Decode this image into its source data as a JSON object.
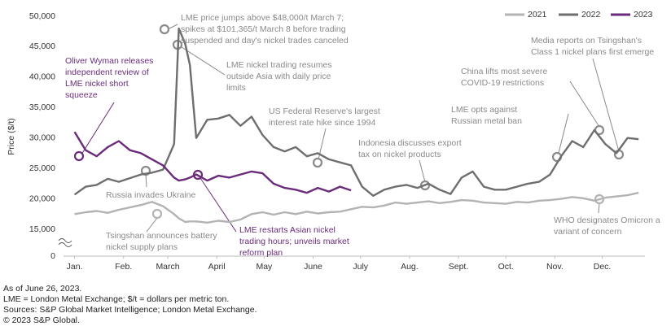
{
  "chart_data": {
    "type": "line",
    "y_label": "Price ($/t)",
    "ylim": [
      15000,
      50000
    ],
    "yticks": [
      {
        "value": 15000,
        "label": "15,000"
      },
      {
        "value": 20000,
        "label": "20,000"
      },
      {
        "value": 25000,
        "label": "25,000"
      },
      {
        "value": 30000,
        "label": "30,000"
      },
      {
        "value": 35000,
        "label": "35,000"
      },
      {
        "value": 40000,
        "label": "40,000"
      },
      {
        "value": 45000,
        "label": "45,000"
      },
      {
        "value": 50000,
        "label": "50,000"
      }
    ],
    "y_break_label": "0",
    "xlim": [
      -7,
      360
    ],
    "xticks": [
      {
        "value": 0,
        "label": "Jan."
      },
      {
        "value": 31,
        "label": "Feb."
      },
      {
        "value": 59,
        "label": "March"
      },
      {
        "value": 90,
        "label": "April"
      },
      {
        "value": 120,
        "label": "May"
      },
      {
        "value": 151,
        "label": "June"
      },
      {
        "value": 181,
        "label": "July"
      },
      {
        "value": 212,
        "label": "Aug."
      },
      {
        "value": 243,
        "label": "Sept."
      },
      {
        "value": 273,
        "label": "Oct."
      },
      {
        "value": 304,
        "label": "Nov."
      },
      {
        "value": 334,
        "label": "Dec."
      }
    ],
    "grid": false,
    "legend": "top-right",
    "x": [
      0,
      7,
      14,
      21,
      28,
      35,
      42,
      49,
      56,
      63,
      66,
      70,
      73,
      77,
      84,
      91,
      98,
      105,
      112,
      119,
      126,
      133,
      140,
      147,
      154,
      161,
      168,
      175,
      182,
      189,
      196,
      203,
      210,
      217,
      224,
      231,
      238,
      245,
      252,
      259,
      266,
      273,
      280,
      287,
      294,
      301,
      308,
      315,
      322,
      329,
      336,
      343,
      350,
      357
    ],
    "series": [
      {
        "name": "2021",
        "color": "#b3b3b3",
        "values": [
          17500,
          17800,
          18000,
          17700,
          18200,
          18600,
          19000,
          19500,
          18800,
          17500,
          16800,
          16200,
          16300,
          16300,
          16100,
          16400,
          16200,
          16600,
          17500,
          17800,
          17400,
          17800,
          17500,
          17900,
          17600,
          17800,
          17900,
          18300,
          18700,
          18600,
          18900,
          19400,
          19200,
          19400,
          19600,
          19300,
          19500,
          19800,
          19700,
          19400,
          19300,
          19200,
          19500,
          19400,
          19700,
          19800,
          20000,
          20300,
          20100,
          19700,
          20200,
          20400,
          20600,
          21000
        ]
      },
      {
        "name": "2022",
        "color": "#6e6e6e",
        "values": [
          20700,
          22000,
          22300,
          23300,
          22800,
          23400,
          24000,
          24300,
          24800,
          29000,
          48000,
          45500,
          42000,
          30000,
          33000,
          33200,
          33800,
          32000,
          33500,
          30500,
          28500,
          27800,
          28500,
          27000,
          27500,
          26500,
          26000,
          25500,
          22000,
          20500,
          21500,
          22000,
          22300,
          21800,
          22500,
          21500,
          20800,
          23500,
          24500,
          22000,
          21500,
          21500,
          22000,
          22500,
          22800,
          24000,
          27000,
          29500,
          28500,
          31300,
          29000,
          27500,
          30000,
          29800
        ]
      },
      {
        "name": "2023",
        "color": "#6a2c7a",
        "values": [
          31000,
          28000,
          27000,
          28500,
          29500,
          28000,
          27500,
          26500,
          25500,
          23500,
          23000,
          23200,
          23500,
          24000,
          23000,
          23800,
          23500,
          24000,
          24500,
          24200,
          22500,
          21800,
          21500,
          21000,
          21800,
          21200,
          22000,
          21400,
          null,
          null,
          null,
          null,
          null,
          null,
          null,
          null,
          null,
          null,
          null,
          null,
          null,
          null,
          null,
          null,
          null,
          null,
          null,
          null,
          null,
          null,
          null,
          null,
          null,
          null
        ]
      }
    ],
    "annotations": [
      {
        "lines": [
          "LME price jumps above $48,000/t March 7;",
          "spikes at $101,365/t March 8 before trading",
          "suspended and day's nickel trades canceled"
        ]
      },
      {
        "lines": [
          "LME nickel trading resumes",
          "outside Asia with daily price",
          "limits"
        ]
      },
      {
        "lines": [
          "Oliver Wyman releases",
          "independent review of",
          "LME nickel short",
          "squeeze"
        ]
      },
      {
        "lines": [
          "US Federal Reserve's largest",
          "interest rate hike since 1994"
        ]
      },
      {
        "lines": [
          "Indonesia discusses export",
          "tax on nickel products"
        ]
      },
      {
        "lines": [
          "LME opts against",
          "Russian metal ban"
        ]
      },
      {
        "lines": [
          "China lifts most severe",
          "COVID-19 restrictions"
        ]
      },
      {
        "lines": [
          "Media reports on Tsingshan's",
          "Class 1 nickel plans first emerge"
        ]
      },
      {
        "lines": [
          "Russia invades Ukraine"
        ]
      },
      {
        "lines": [
          "Tsingshan announces battery",
          "nickel supply plans"
        ]
      },
      {
        "lines": [
          "LME restarts Asian nickel",
          "trading hours; unveils market",
          "reform plan"
        ]
      },
      {
        "lines": [
          "WHO designates Omicron a",
          "variant of concern"
        ]
      }
    ]
  },
  "footnotes": [
    "As of June 26, 2023.",
    "LME = London Metal Exchange; $/t = dollars per metric ton.",
    "Sources: S&P Global Market Intelligence; London Metal Exchange.",
    "© 2023 S&P Global."
  ]
}
